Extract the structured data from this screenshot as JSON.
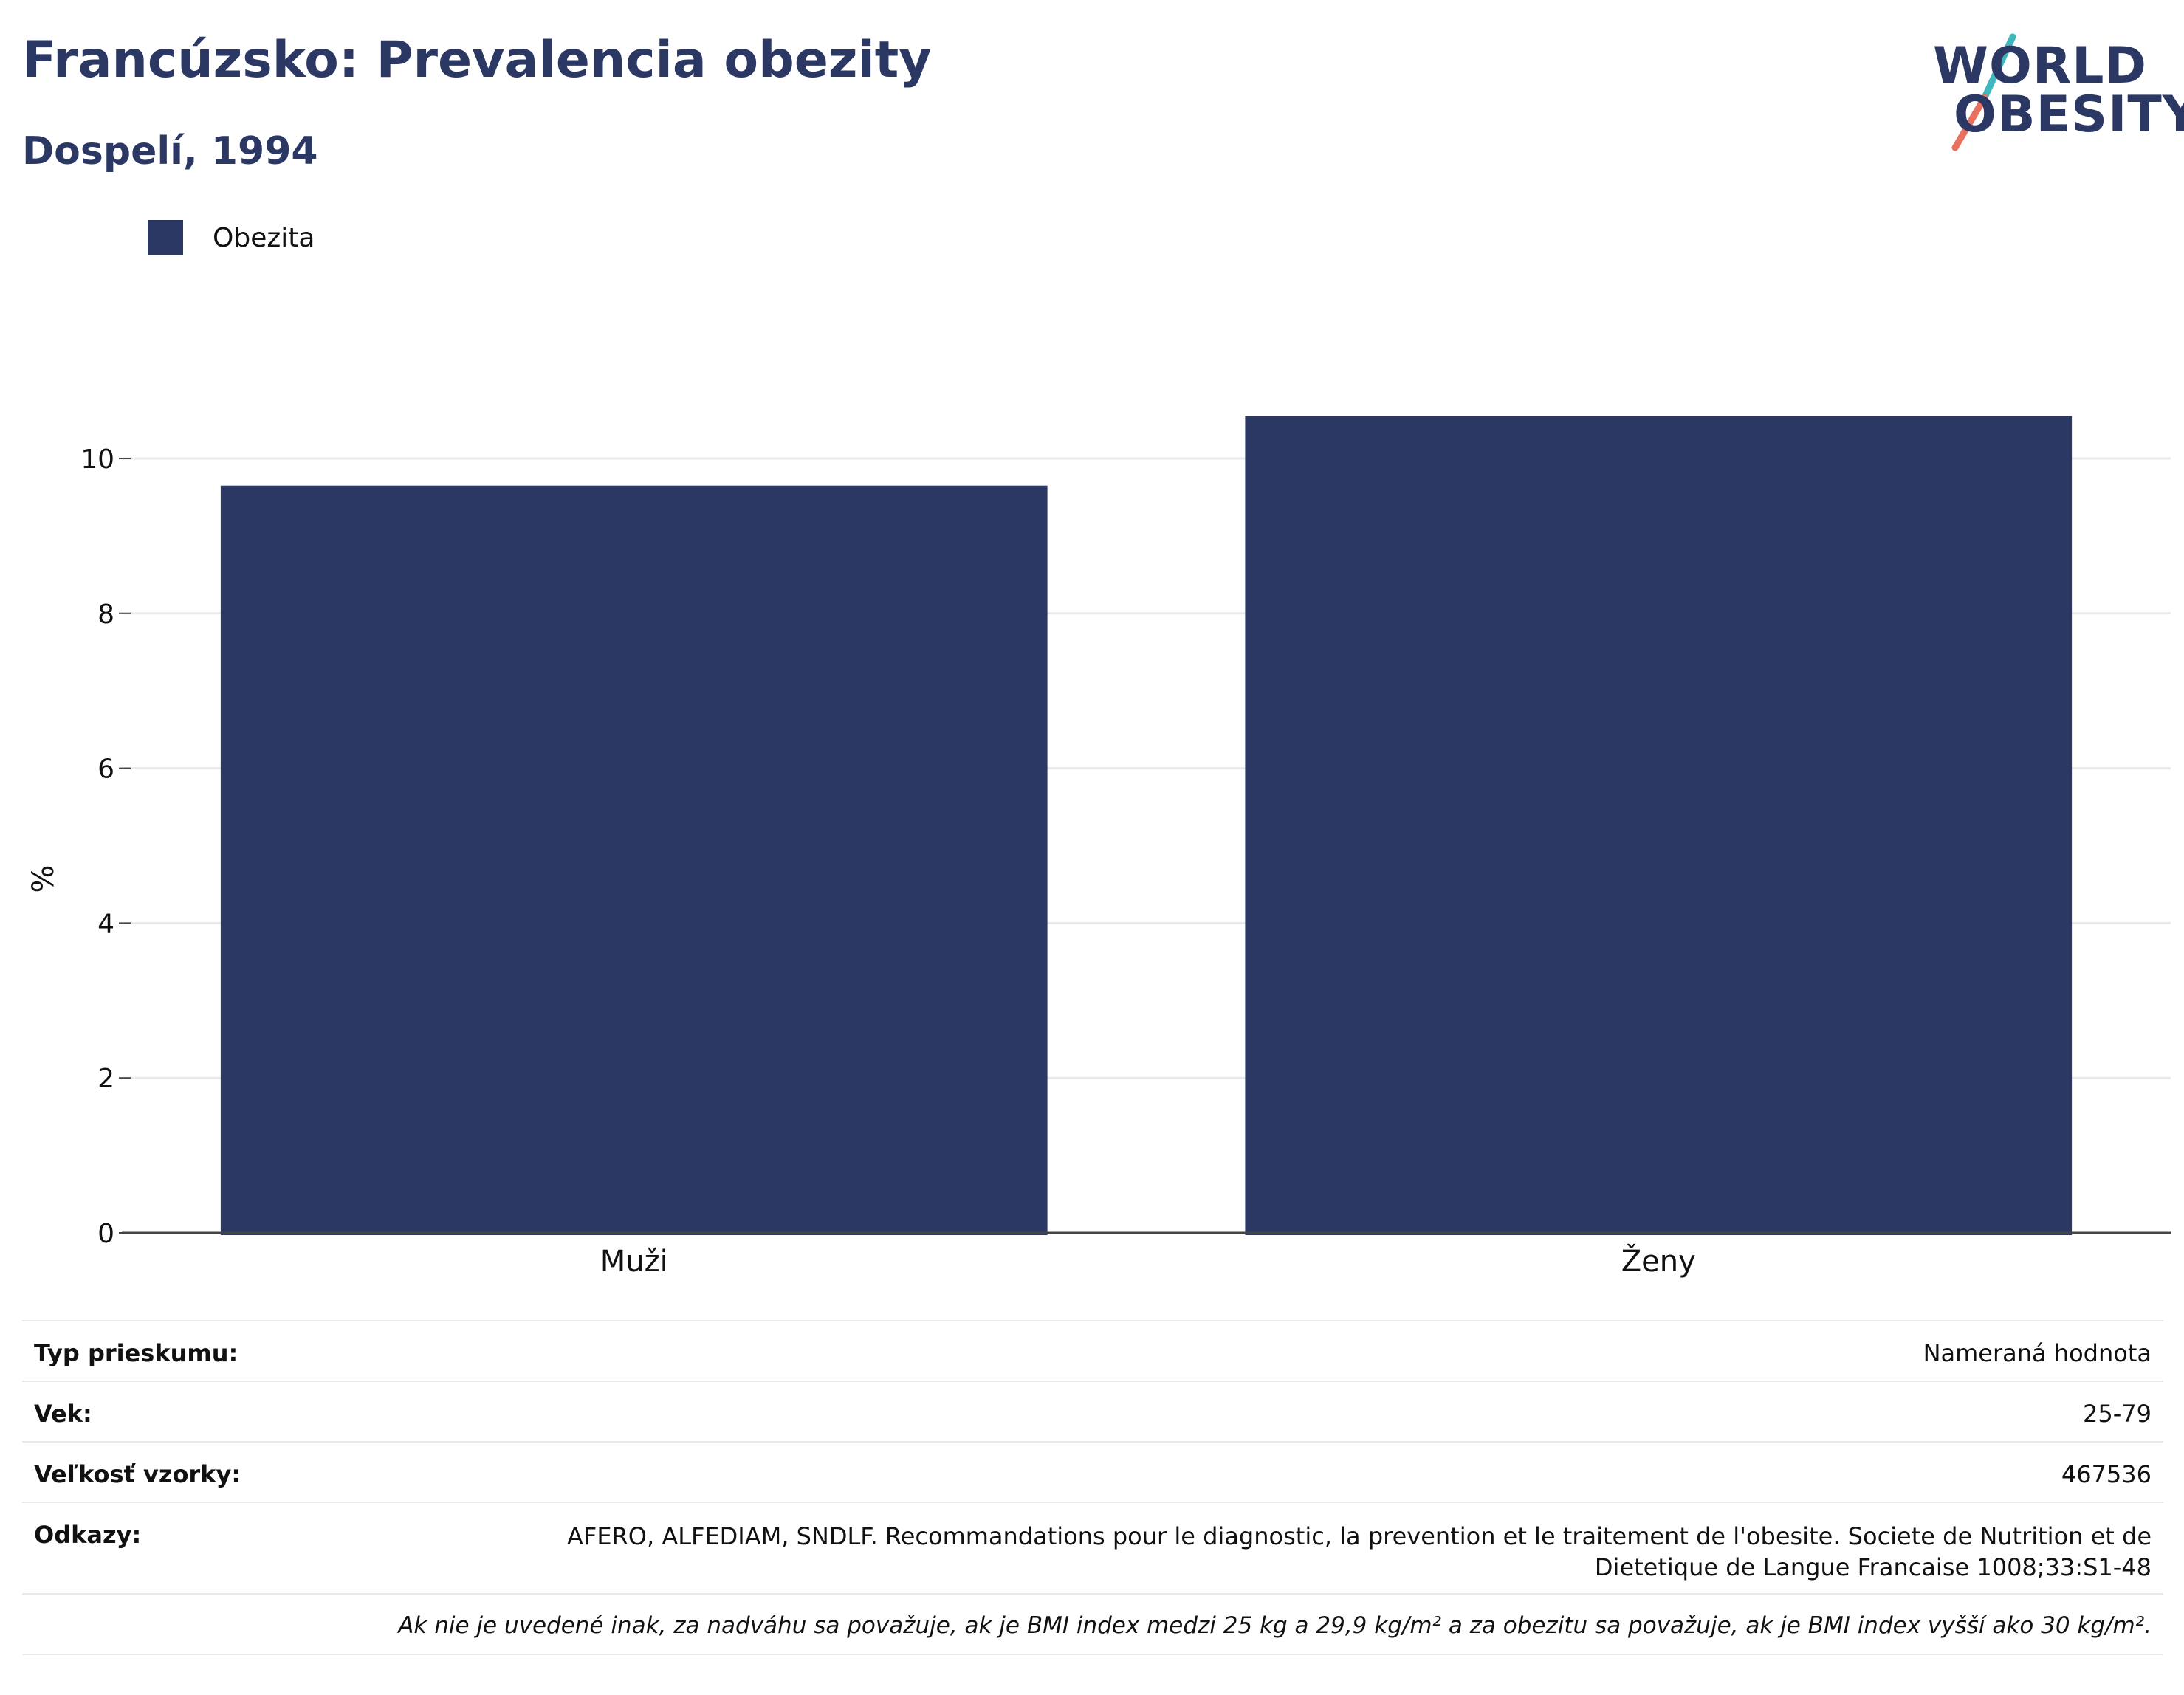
{
  "header": {
    "title": "Francúzsko: Prevalencia obezity",
    "subtitle": "Dospelí, 1994"
  },
  "logo": {
    "line1": "WORLD",
    "line2": "OBESITY",
    "colors": {
      "text": "#2c3864",
      "slash_top": "#3fb8bd",
      "slash_bottom": "#e8705f"
    }
  },
  "legend": {
    "label": "Obezita",
    "color": "#2c3864"
  },
  "chart_data": {
    "type": "bar",
    "categories": [
      "Muži",
      "Ženy"
    ],
    "series": [
      {
        "name": "Obezita",
        "values": [
          9.65,
          10.55
        ],
        "color": "#2c3864"
      }
    ],
    "ylabel": "%",
    "xlabel": "",
    "ylim": [
      0,
      11
    ],
    "yticks": [
      0,
      2,
      4,
      6,
      8,
      10
    ],
    "grid": true,
    "legend_position": "top-left"
  },
  "info": {
    "survey_type": {
      "label": "Typ prieskumu:",
      "value": "Nameraná hodnota"
    },
    "age": {
      "label": "Vek:",
      "value": "25-79"
    },
    "sample_size": {
      "label": "Veľkosť vzorky:",
      "value": "467536"
    },
    "references": {
      "label": "Odkazy:",
      "value": "AFERO, ALFEDIAM, SNDLF. Recommandations pour le diagnostic, la prevention et le traitement de l'obesite. Societe de Nutrition et de Dietetique de Langue Francaise 1008;33:S1-48"
    },
    "note": "Ak nie je uvedené inak, za nadváhu sa považuje, ak je BMI index medzi 25 kg a 29,9 kg/m² a za obezitu sa považuje, ak je BMI index vyšší ako 30 kg/m²."
  }
}
